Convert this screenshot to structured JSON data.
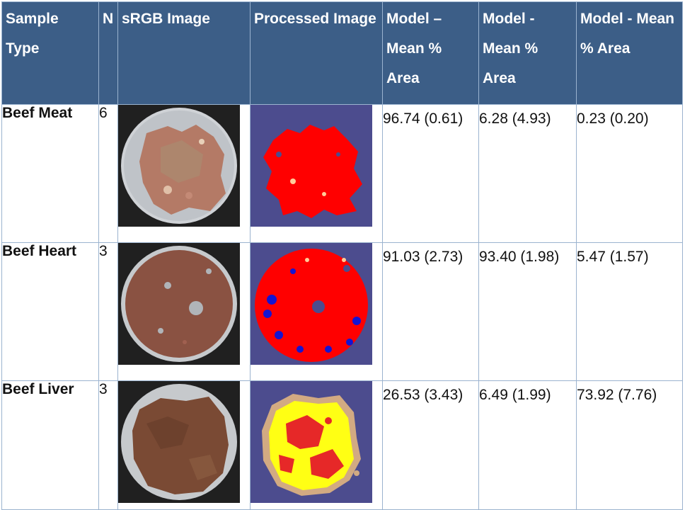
{
  "table": {
    "headers": [
      "Sample Type",
      "N",
      "sRGB Image",
      "Processed Image",
      "Model – Mean % Area",
      "Model - Mean % Area",
      "Model - Mean % Area"
    ],
    "rows": [
      {
        "sample": "Beef Meat",
        "n": "6",
        "model1": "96.74 (0.61)",
        "model2": "6.28 (4.93)",
        "model3": "0.23 (0.20)",
        "processed_colors": [
          "#ff0000"
        ],
        "photo_color": "#b07663"
      },
      {
        "sample": "Beef Heart",
        "n": "3",
        "model1": "91.03 (2.73)",
        "model2": "93.40 (1.98)",
        "model3": "5.47 (1.57)",
        "processed_colors": [
          "#ff0000",
          "#1414d2"
        ],
        "photo_color": "#8a5040"
      },
      {
        "sample": "Beef Liver",
        "n": "3",
        "model1": "26.53 (3.43)",
        "model2": "6.49 (1.99)",
        "model3": "73.92 (7.76)",
        "processed_colors": [
          "#ffff14",
          "#e62828",
          "#d2aa82"
        ],
        "photo_color": "#7a4a34"
      }
    ]
  }
}
